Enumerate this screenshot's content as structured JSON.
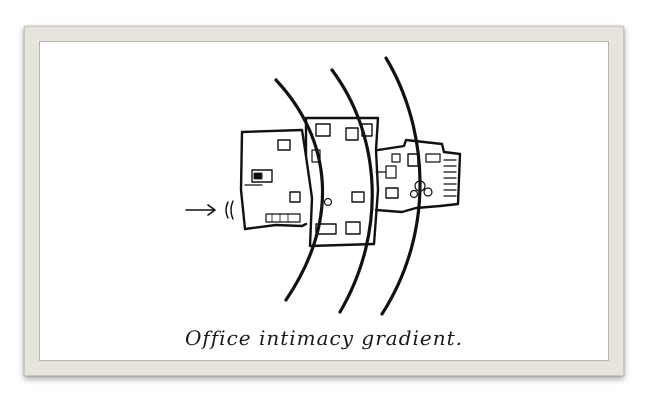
{
  "figure": {
    "caption": "Office intimacy gradient."
  }
}
